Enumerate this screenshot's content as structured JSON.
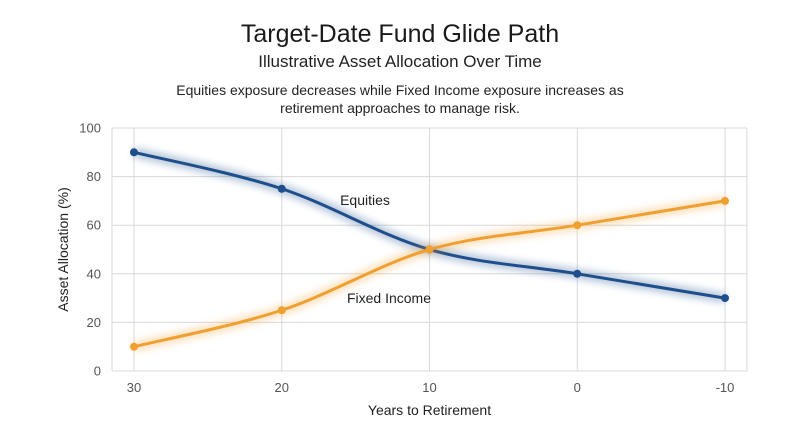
{
  "chart_data": {
    "type": "line",
    "title": "Target-Date Fund Glide Path",
    "subtitle": "Illustrative Asset Allocation Over Time",
    "annotation": "Equities exposure decreases while Fixed Income exposure increases as retirement approaches to manage risk.",
    "xlabel": "Years to Retirement",
    "ylabel": "Asset Allocation (%)",
    "x": [
      30,
      20,
      10,
      0,
      -10
    ],
    "xlim": [
      30,
      -10
    ],
    "ylim": [
      0,
      100
    ],
    "yticks": [
      0,
      20,
      40,
      60,
      80,
      100
    ],
    "xticks": [
      30,
      20,
      10,
      0,
      -10
    ],
    "grid": true,
    "legend": "none",
    "series": [
      {
        "name": "Equities",
        "values": [
          90,
          75,
          50,
          40,
          30
        ],
        "color": "#1f4e8c"
      },
      {
        "name": "Fixed Income",
        "values": [
          10,
          25,
          50,
          60,
          70
        ],
        "color": "#f0a030"
      }
    ]
  }
}
